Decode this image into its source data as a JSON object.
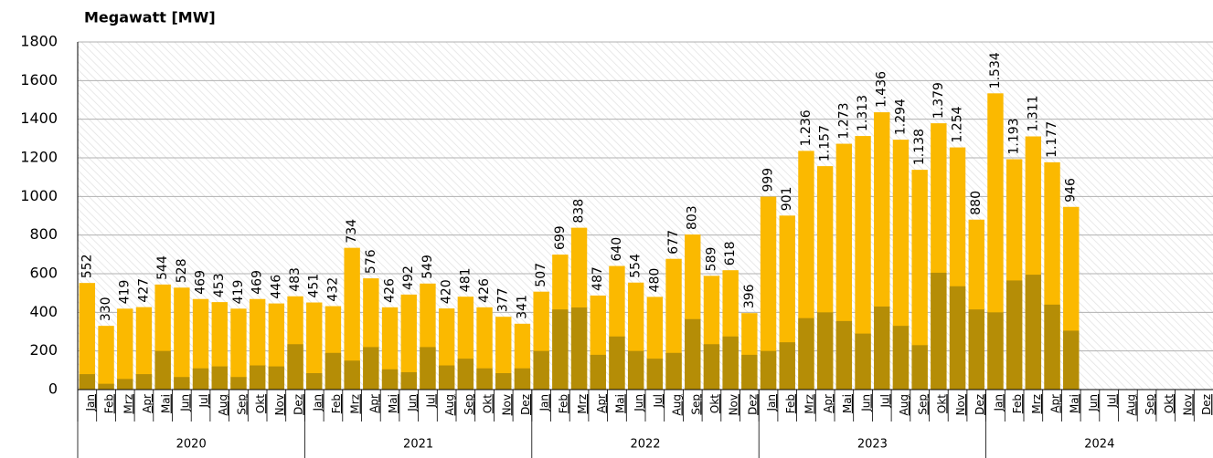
{
  "chart_data": {
    "type": "overlap_bar",
    "title": "Megawatt [MW]",
    "categories": [
      "Jan",
      "Feb",
      "Mrz",
      "Apr",
      "Mai",
      "Jun",
      "Jul",
      "Aug",
      "Sep",
      "Okt",
      "Nov",
      "Dez",
      "Jan",
      "Feb",
      "Mrz",
      "Apr",
      "Mai",
      "Jun",
      "Jul",
      "Aug",
      "Sep",
      "Okt",
      "Nov",
      "Dez",
      "Jan",
      "Feb",
      "Mrz",
      "Apr",
      "Mai",
      "Jun",
      "Jul",
      "Aug",
      "Sep",
      "Okt",
      "Nov",
      "Dez",
      "Jan",
      "Feb",
      "Mrz",
      "Apr",
      "Mai",
      "Jun",
      "Jul",
      "Aug",
      "Sep",
      "Okt",
      "Nov",
      "Dez",
      "Jan",
      "Feb",
      "Mrz",
      "Apr",
      "Mai",
      "Jun",
      "Jul",
      "Aug",
      "Sep",
      "Okt",
      "Nov",
      "Dez"
    ],
    "groups": [
      "2020",
      "2021",
      "2022",
      "2023",
      "2024"
    ],
    "series": [
      {
        "color": "#fbb900",
        "values": [
          552,
          330,
          419,
          427,
          544,
          528,
          469,
          453,
          419,
          469,
          446,
          483,
          451,
          432,
          734,
          576,
          426,
          492,
          549,
          420,
          481,
          426,
          377,
          341,
          507,
          699,
          838,
          487,
          640,
          554,
          480,
          677,
          803,
          589,
          618,
          396,
          999,
          901,
          1236,
          1157,
          1273,
          1313,
          1436,
          1294,
          1138,
          1379,
          1254,
          880,
          1534,
          1193,
          1311,
          1177,
          946,
          null,
          null,
          null,
          null,
          null,
          null,
          null
        ],
        "value_labels": [
          "552",
          "330",
          "419",
          "427",
          "544",
          "528",
          "469",
          "453",
          "419",
          "469",
          "446",
          "483",
          "451",
          "432",
          "734",
          "576",
          "426",
          "492",
          "549",
          "420",
          "481",
          "426",
          "377",
          "341",
          "507",
          "699",
          "838",
          "487",
          "640",
          "554",
          "480",
          "677",
          "803",
          "589",
          "618",
          "396",
          "999",
          "901",
          "1.236",
          "1.157",
          "1.273",
          "1.313",
          "1.436",
          "1.294",
          "1.138",
          "1.379",
          "1.254",
          "880",
          "1.534",
          "1.193",
          "1.311",
          "1.177",
          "946",
          null,
          null,
          null,
          null,
          null,
          null,
          null
        ]
      },
      {
        "color": "#b58d06",
        "values": [
          80,
          30,
          55,
          80,
          200,
          65,
          110,
          120,
          65,
          125,
          120,
          235,
          85,
          190,
          150,
          220,
          105,
          90,
          220,
          125,
          160,
          110,
          85,
          110,
          200,
          415,
          425,
          180,
          275,
          200,
          160,
          190,
          365,
          235,
          275,
          180,
          200,
          245,
          370,
          400,
          355,
          290,
          430,
          330,
          230,
          605,
          535,
          415,
          400,
          565,
          595,
          440,
          305,
          null,
          null,
          null,
          null,
          null,
          null,
          null
        ]
      }
    ],
    "ylim": [
      0,
      1800
    ],
    "yticks": [
      0,
      200,
      400,
      600,
      800,
      1000,
      1200,
      1400,
      1600,
      1800
    ],
    "grid": true
  }
}
